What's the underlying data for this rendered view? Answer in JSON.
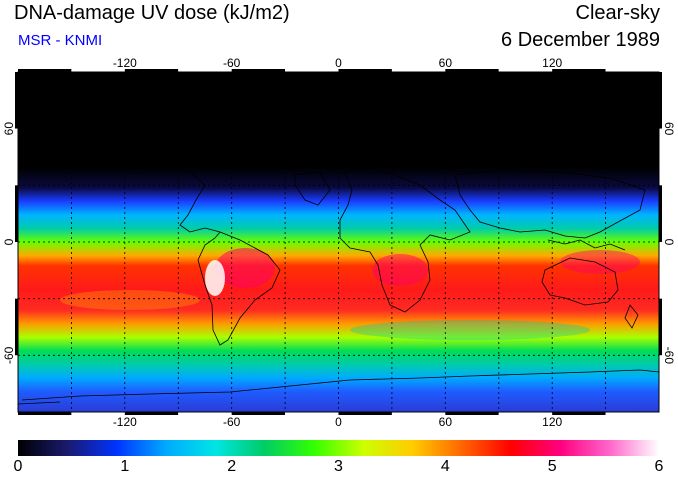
{
  "header": {
    "title": "DNA-damage UV dose (kJ/m2)",
    "subtitle": "MSR - KNMI",
    "condition": "Clear-sky",
    "date": "6 December 1989"
  },
  "map": {
    "lon_ticks": [
      -120,
      -60,
      0,
      60,
      120
    ],
    "lat_ticks": [
      60,
      0,
      -60
    ],
    "lon_range": [
      -180,
      180
    ],
    "lat_range": [
      -90,
      90
    ],
    "gridlines": "dashed every 30 degrees"
  },
  "colorbar": {
    "ticks": [
      "0",
      "1",
      "2",
      "3",
      "4",
      "5",
      "6"
    ],
    "range": [
      0,
      6
    ],
    "colors": [
      "#000000",
      "#1a1a6e",
      "#0033ff",
      "#00aaff",
      "#00e5e5",
      "#00cc66",
      "#33ff00",
      "#ccff00",
      "#ffcc00",
      "#ff6600",
      "#ff0000",
      "#ff0080",
      "#ff66cc",
      "#ffffff"
    ]
  }
}
